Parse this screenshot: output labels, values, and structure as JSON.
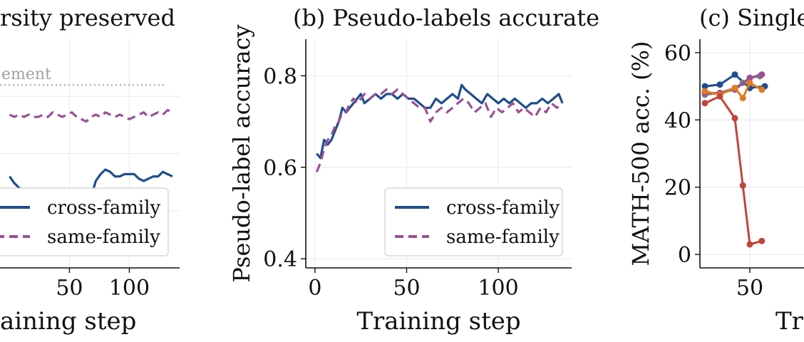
{
  "colors": {
    "cross": "#1f4e8c",
    "same": "#9b4f96",
    "red": "#c0453a",
    "orange": "#e07b1f",
    "gray": "#7a7a7a",
    "ref": "#a0a0a0"
  },
  "chart_data": [
    {
      "id": "a",
      "type": "line",
      "title": "rsity preserved",
      "xlabel": "aining step",
      "ylabel": "",
      "xlim": [
        -8,
        142
      ],
      "ylim": [
        0.0,
        1.0
      ],
      "xticks": [
        50,
        100
      ],
      "yticks": [],
      "grid": true,
      "annotation": {
        "text": "ement",
        "y": 0.8
      },
      "legend": {
        "position": "lower-right",
        "entries": [
          "cross-family",
          "same-family"
        ]
      },
      "series": [
        {
          "name": "cross-family",
          "x": [
            0,
            4,
            8,
            12,
            16,
            20,
            24,
            28,
            32,
            36,
            40,
            44,
            48,
            52,
            56,
            60,
            64,
            68,
            72,
            76,
            80,
            84,
            88,
            92,
            96,
            100,
            104,
            108,
            112,
            116,
            120,
            124,
            128,
            132,
            136
          ],
          "values": [
            0.4,
            0.37,
            0.35,
            0.33,
            0.31,
            0.31,
            0.3,
            0.29,
            0.29,
            0.29,
            0.29,
            0.29,
            0.29,
            0.29,
            0.29,
            0.28,
            0.29,
            0.31,
            0.38,
            0.41,
            0.43,
            0.42,
            0.4,
            0.4,
            0.41,
            0.41,
            0.41,
            0.39,
            0.38,
            0.39,
            0.4,
            0.4,
            0.42,
            0.41,
            0.4
          ]
        },
        {
          "name": "same-family",
          "x": [
            0,
            4,
            8,
            12,
            16,
            20,
            24,
            28,
            32,
            36,
            40,
            44,
            48,
            52,
            56,
            60,
            64,
            68,
            72,
            76,
            80,
            84,
            88,
            92,
            96,
            100,
            104,
            108,
            112,
            116,
            120,
            124,
            128,
            132,
            136
          ],
          "values": [
            0.67,
            0.66,
            0.67,
            0.66,
            0.67,
            0.66,
            0.66,
            0.67,
            0.66,
            0.68,
            0.67,
            0.66,
            0.67,
            0.68,
            0.66,
            0.65,
            0.64,
            0.66,
            0.67,
            0.66,
            0.68,
            0.67,
            0.66,
            0.67,
            0.66,
            0.65,
            0.66,
            0.67,
            0.68,
            0.66,
            0.67,
            0.68,
            0.67,
            0.69,
            0.68
          ]
        }
      ]
    },
    {
      "id": "b",
      "type": "line",
      "title": "(b) Pseudo-labels accurate",
      "xlabel": "Training step",
      "ylabel": "Pseudo-label accuracy",
      "xlim": [
        -5,
        140
      ],
      "ylim": [
        0.38,
        0.88
      ],
      "xticks": [
        0,
        50,
        100
      ],
      "yticks": [
        0.4,
        0.6,
        0.8
      ],
      "grid": true,
      "legend": {
        "position": "lower-right",
        "entries": [
          "cross-family",
          "same-family"
        ]
      },
      "series": [
        {
          "name": "cross-family",
          "x": [
            1,
            3,
            5,
            7,
            9,
            11,
            13,
            15,
            17,
            19,
            21,
            23,
            25,
            27,
            30,
            33,
            36,
            39,
            42,
            45,
            48,
            51,
            54,
            57,
            60,
            63,
            66,
            69,
            72,
            75,
            78,
            80,
            82,
            85,
            88,
            91,
            94,
            97,
            100,
            103,
            106,
            109,
            112,
            115,
            118,
            121,
            124,
            127,
            130,
            133,
            135
          ],
          "values": [
            0.63,
            0.62,
            0.66,
            0.65,
            0.66,
            0.68,
            0.7,
            0.73,
            0.72,
            0.73,
            0.74,
            0.75,
            0.76,
            0.74,
            0.75,
            0.76,
            0.75,
            0.76,
            0.76,
            0.75,
            0.76,
            0.75,
            0.75,
            0.74,
            0.73,
            0.73,
            0.75,
            0.74,
            0.75,
            0.76,
            0.75,
            0.78,
            0.77,
            0.76,
            0.75,
            0.74,
            0.76,
            0.75,
            0.74,
            0.75,
            0.74,
            0.75,
            0.74,
            0.73,
            0.74,
            0.74,
            0.75,
            0.74,
            0.75,
            0.76,
            0.74
          ]
        },
        {
          "name": "same-family",
          "x": [
            1,
            3,
            5,
            7,
            9,
            11,
            13,
            15,
            17,
            19,
            21,
            23,
            25,
            27,
            30,
            33,
            36,
            39,
            42,
            45,
            48,
            51,
            54,
            57,
            60,
            63,
            66,
            69,
            72,
            75,
            78,
            81,
            84,
            87,
            90,
            93,
            96,
            99,
            102,
            105,
            108,
            111,
            114,
            117,
            120,
            123,
            126,
            129,
            132,
            135
          ],
          "values": [
            0.59,
            0.61,
            0.64,
            0.66,
            0.67,
            0.69,
            0.7,
            0.72,
            0.72,
            0.74,
            0.75,
            0.74,
            0.75,
            0.76,
            0.75,
            0.76,
            0.76,
            0.77,
            0.76,
            0.77,
            0.76,
            0.75,
            0.74,
            0.73,
            0.73,
            0.7,
            0.72,
            0.73,
            0.72,
            0.73,
            0.74,
            0.75,
            0.74,
            0.72,
            0.73,
            0.74,
            0.71,
            0.73,
            0.72,
            0.73,
            0.74,
            0.72,
            0.73,
            0.72,
            0.71,
            0.73,
            0.72,
            0.74,
            0.73,
            0.74
          ]
        }
      ]
    },
    {
      "id": "c",
      "type": "line",
      "title": "(c) Single",
      "xlabel": "Trai",
      "ylabel": "MATH-500 acc. (%)",
      "xlim": [
        0,
        120
      ],
      "ylim": [
        -4,
        64
      ],
      "xticks": [
        50
      ],
      "yticks": [
        0,
        20,
        40,
        60
      ],
      "grid": true,
      "series": [
        {
          "name": "",
          "color": "cross",
          "x": [
            5,
            20,
            35,
            50,
            65
          ],
          "values": [
            50,
            50.5,
            53.5,
            49.5,
            50
          ]
        },
        {
          "name": "",
          "color": "gray",
          "x": [
            5,
            20,
            35,
            43,
            50,
            60
          ],
          "values": [
            47.5,
            48,
            49.5,
            51,
            52.5,
            53
          ]
        },
        {
          "name": "",
          "color": "same",
          "x": [
            5,
            20,
            35,
            50,
            62
          ],
          "values": [
            48,
            48,
            49,
            52.5,
            53.5
          ]
        },
        {
          "name": "",
          "color": "orange",
          "x": [
            5,
            20,
            35,
            43,
            50,
            62
          ],
          "values": [
            48.5,
            47.5,
            49.5,
            46.5,
            51,
            49
          ]
        },
        {
          "name": "",
          "color": "red",
          "x": [
            5,
            20,
            35,
            43,
            50,
            62
          ],
          "values": [
            45,
            47,
            40.5,
            20.5,
            3,
            4
          ]
        }
      ]
    }
  ]
}
